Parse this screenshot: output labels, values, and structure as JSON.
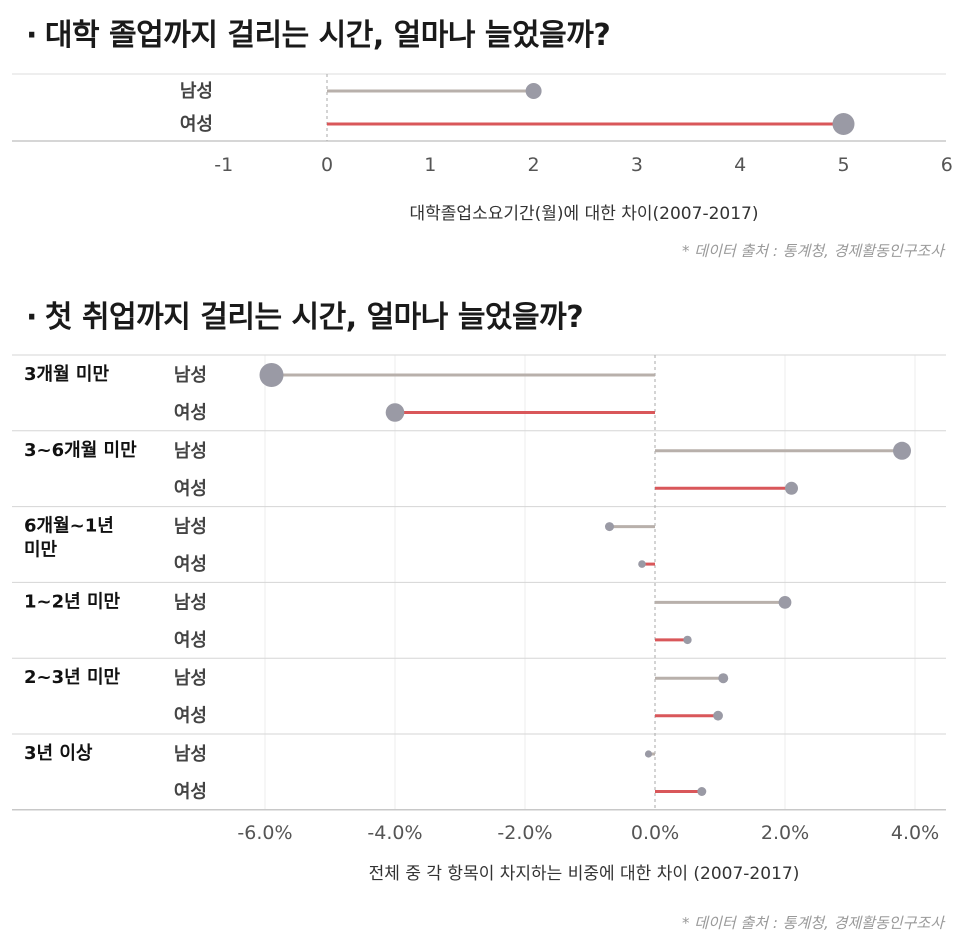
{
  "chart_data": [
    {
      "type": "lollipop",
      "title": "대학 졸업까지 걸리는 시간, 얼마나 늘었을까?",
      "xlabel": "대학졸업소요기간(월)에 대한 차이(2007-2017)",
      "xlim": [
        -1,
        6
      ],
      "xticks": [
        "-1",
        "0",
        "1",
        "2",
        "3",
        "4",
        "5",
        "6"
      ],
      "rows": [
        {
          "label": "남성",
          "value": 2.0,
          "color": "#b8b0ab"
        },
        {
          "label": "여성",
          "value": 5.0,
          "color": "#d9575a"
        }
      ],
      "source": "* 데이터 출처 : 통계청, 경제활동인구조사"
    },
    {
      "type": "lollipop",
      "title": "첫 취업까지 걸리는 시간, 얼마나 늘었을까?",
      "xlabel": "전체 중 각 항목이 차지하는 비중에 대한 차이 (2007-2017)",
      "xlim": [
        -7,
        4.2
      ],
      "xticks": [
        "-6.0%",
        "-4.0%",
        "-2.0%",
        "0.0%",
        "2.0%",
        "4.0%"
      ],
      "groups": [
        {
          "label": "3개월 미만",
          "rows": [
            {
              "label": "남성",
              "value": -5.9
            },
            {
              "label": "여성",
              "value": -4.0
            }
          ]
        },
        {
          "label": "3~6개월 미만",
          "rows": [
            {
              "label": "남성",
              "value": 3.8
            },
            {
              "label": "여성",
              "value": 2.1
            }
          ]
        },
        {
          "label": "6개월~1년 미만",
          "rows": [
            {
              "label": "남성",
              "value": -0.7
            },
            {
              "label": "여성",
              "value": -0.2
            }
          ]
        },
        {
          "label": "1~2년 미만",
          "rows": [
            {
              "label": "남성",
              "value": 2.0
            },
            {
              "label": "여성",
              "value": 0.5
            }
          ]
        },
        {
          "label": "2~3년 미만",
          "rows": [
            {
              "label": "남성",
              "value": 1.05
            },
            {
              "label": "여성",
              "value": 0.97
            }
          ]
        },
        {
          "label": "3년 이상",
          "rows": [
            {
              "label": "남성",
              "value": -0.1
            },
            {
              "label": "여성",
              "value": 0.72
            }
          ]
        }
      ],
      "colors": {
        "남성": "#b8b0ab",
        "여성": "#d9575a",
        "dot": "#9a9aa5"
      },
      "source": "* 데이터 출처 : 통계청, 경제활동인구조사"
    }
  ]
}
